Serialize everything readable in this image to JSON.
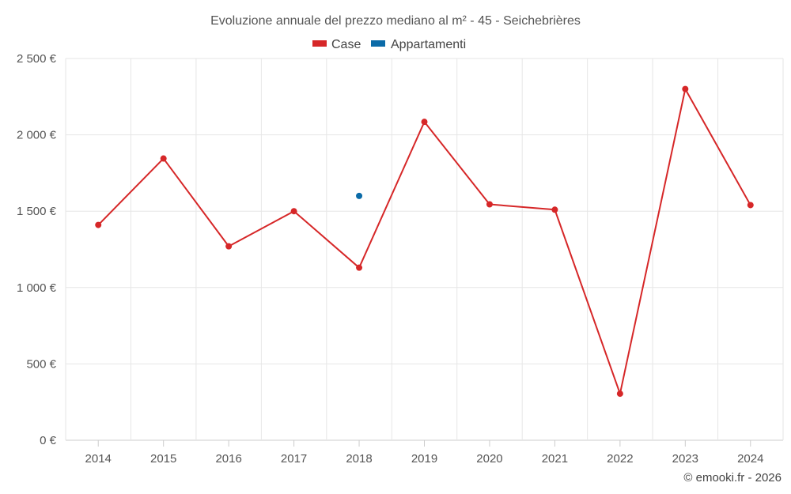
{
  "chart_data": {
    "type": "line",
    "title": "Evoluzione annuale del prezzo mediano al m² - 45 - Seichebrières",
    "categories": [
      "2014",
      "2015",
      "2016",
      "2017",
      "2018",
      "2019",
      "2020",
      "2021",
      "2022",
      "2023",
      "2024"
    ],
    "series": [
      {
        "name": "Case",
        "color": "#d62728",
        "values": [
          1410,
          1845,
          1270,
          1500,
          1130,
          2085,
          1545,
          1510,
          305,
          2300,
          1540
        ]
      },
      {
        "name": "Appartamenti",
        "color": "#0b6ba8",
        "values": [
          null,
          null,
          null,
          null,
          1600,
          null,
          null,
          null,
          null,
          null,
          null
        ]
      }
    ],
    "y_ticks": [
      "0 €",
      "500 €",
      "1 000 €",
      "1 500 €",
      "2 000 €",
      "2 500 €"
    ],
    "ylim": [
      0,
      2500
    ],
    "grid": true,
    "legend_position": "top-center"
  },
  "credit": "© emooki.fr - 2026"
}
